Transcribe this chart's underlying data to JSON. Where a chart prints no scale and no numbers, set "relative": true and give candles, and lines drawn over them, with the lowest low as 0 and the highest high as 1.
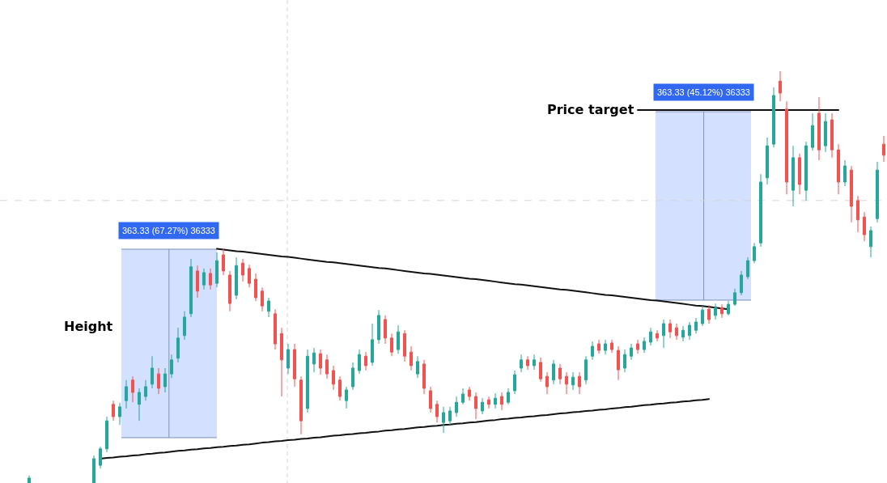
{
  "chart_data": {
    "type": "candlestick",
    "relative": true,
    "categories": [
      null,
      null,
      null,
      null,
      null,
      null,
      null,
      null,
      null,
      null,
      null,
      null,
      null,
      null,
      null,
      null,
      null,
      null,
      null,
      null,
      null,
      null,
      null,
      null,
      null,
      null,
      null,
      null,
      null,
      null,
      null,
      null,
      null,
      null,
      null,
      null,
      null,
      null,
      null,
      null,
      null,
      null,
      null,
      null,
      null,
      null,
      null,
      null,
      null,
      null,
      null,
      null,
      null,
      null,
      null,
      null,
      null,
      null,
      null,
      null,
      null,
      null,
      null,
      null,
      null,
      null,
      null,
      null,
      null,
      null,
      null,
      null,
      null,
      null,
      null,
      null,
      null,
      null,
      null,
      null,
      null,
      null,
      null,
      null,
      null,
      null,
      null,
      null,
      null,
      null,
      null,
      null,
      null,
      null,
      null,
      null,
      null,
      null,
      null,
      null,
      null,
      null,
      null,
      null,
      null,
      null,
      null,
      null,
      null,
      null,
      null,
      null,
      null,
      null,
      null,
      null,
      null,
      null,
      null,
      null,
      null,
      null,
      null,
      null,
      null,
      null,
      null,
      null,
      null,
      null,
      null,
      null,
      null,
      null,
      null,
      null,
      null
    ],
    "ohlc": [
      null,
      null,
      null,
      null,
      [
        0,
        0.018,
        0,
        0.012
      ],
      null,
      null,
      null,
      null,
      null,
      null,
      null,
      null,
      null,
      [
        0,
        0.067,
        0,
        0.059
      ],
      [
        0.043,
        0.088,
        0.035,
        0.083
      ],
      [
        0.083,
        0.161,
        0.075,
        0.151
      ],
      [
        0.191,
        0.2,
        0.151,
        0.161
      ],
      [
        0.161,
        0.195,
        0.141,
        0.185
      ],
      [
        0.2,
        0.25,
        0.181,
        0.234
      ],
      [
        0.25,
        0.259,
        0.196,
        0.22
      ],
      [
        0.191,
        0.23,
        0.151,
        0.22
      ],
      [
        0.21,
        0.25,
        0.2,
        0.234
      ],
      [
        0.24,
        0.308,
        0.23,
        0.279
      ],
      [
        0.265,
        0.279,
        0.216,
        0.23
      ],
      [
        0.234,
        0.279,
        0.22,
        0.265
      ],
      [
        0.265,
        0.312,
        0.255,
        0.299
      ],
      [
        0.303,
        0.377,
        0.293,
        0.352
      ],
      [
        0.358,
        0.417,
        0.348,
        0.403
      ],
      [
        0.411,
        0.544,
        0.403,
        0.525
      ],
      [
        0.515,
        0.528,
        0.45,
        0.466
      ],
      [
        0.481,
        0.521,
        0.47,
        0.511
      ],
      [
        0.509,
        0.521,
        0.47,
        0.481
      ],
      [
        0.485,
        0.56,
        0.475,
        0.54
      ],
      [
        0.554,
        0.57,
        0.505,
        0.515
      ],
      [
        0.505,
        0.515,
        0.417,
        0.436
      ],
      [
        0.456,
        0.548,
        0.446,
        0.528
      ],
      [
        0.534,
        0.544,
        0.489,
        0.505
      ],
      [
        0.521,
        0.53,
        0.475,
        0.485
      ],
      [
        0.495,
        0.509,
        0.442,
        0.45
      ],
      [
        0.466,
        0.475,
        0.417,
        0.43
      ],
      [
        0.417,
        0.45,
        0.403,
        0.442
      ],
      [
        0.411,
        0.422,
        0.324,
        0.338
      ],
      [
        0.363,
        0.377,
        0.21,
        0.299
      ],
      [
        0.279,
        0.338,
        0.265,
        0.324
      ],
      [
        0.324,
        0.338,
        0.234,
        0.253
      ],
      [
        0.25,
        0.259,
        0.118,
        0.151
      ],
      [
        0.181,
        0.324,
        0.171,
        0.308
      ],
      [
        0.289,
        0.328,
        0.269,
        0.316
      ],
      [
        0.314,
        0.324,
        0.263,
        0.279
      ],
      [
        0.299,
        0.312,
        0.253,
        0.265
      ],
      [
        0.273,
        0.285,
        0.226,
        0.24
      ],
      [
        0.25,
        0.259,
        0.2,
        0.21
      ],
      [
        0.2,
        0.234,
        0.181,
        0.226
      ],
      [
        0.234,
        0.293,
        0.226,
        0.279
      ],
      [
        0.273,
        0.324,
        0.265,
        0.312
      ],
      [
        0.308,
        0.318,
        0.273,
        0.285
      ],
      [
        0.293,
        0.387,
        0.285,
        0.348
      ],
      [
        0.348,
        0.42,
        0.338,
        0.407
      ],
      [
        0.397,
        0.407,
        0.338,
        0.352
      ],
      [
        0.352,
        0.363,
        0.308,
        0.318
      ],
      [
        0.324,
        0.383,
        0.314,
        0.367
      ],
      [
        0.363,
        0.371,
        0.295,
        0.308
      ],
      [
        0.318,
        0.332,
        0.273,
        0.285
      ],
      [
        0.265,
        0.308,
        0.255,
        0.295
      ],
      [
        0.289,
        0.299,
        0.216,
        0.23
      ],
      [
        0.224,
        0.234,
        0.171,
        0.181
      ],
      [
        0.191,
        0.2,
        0.147,
        0.161
      ],
      [
        0.147,
        0.185,
        0.122,
        0.171
      ],
      [
        0.151,
        0.185,
        0.141,
        0.175
      ],
      [
        0.171,
        0.21,
        0.161,
        0.196
      ],
      [
        0.196,
        0.23,
        0.191,
        0.216
      ],
      [
        0.226,
        0.234,
        0.2,
        0.21
      ],
      [
        0.21,
        0.22,
        0.155,
        0.181
      ],
      [
        0.175,
        0.206,
        0.167,
        0.196
      ],
      [
        0.202,
        0.21,
        0.181,
        0.191
      ],
      [
        0.191,
        0.218,
        0.181,
        0.206
      ],
      [
        0.21,
        0.22,
        0.177,
        0.191
      ],
      [
        0.196,
        0.23,
        0.191,
        0.22
      ],
      [
        0.224,
        0.273,
        0.216,
        0.263
      ],
      [
        0.279,
        0.312,
        0.269,
        0.299
      ],
      [
        0.299,
        0.308,
        0.275,
        0.285
      ],
      [
        0.285,
        0.312,
        0.275,
        0.299
      ],
      [
        0.293,
        0.305,
        0.246,
        0.253
      ],
      [
        0.259,
        0.269,
        0.216,
        0.234
      ],
      [
        0.25,
        0.299,
        0.24,
        0.289
      ],
      [
        0.279,
        0.289,
        0.24,
        0.253
      ],
      [
        0.259,
        0.269,
        0.216,
        0.24
      ],
      [
        0.238,
        0.269,
        0.226,
        0.257
      ],
      [
        0.259,
        0.269,
        0.216,
        0.234
      ],
      [
        0.25,
        0.308,
        0.24,
        0.299
      ],
      [
        0.308,
        0.344,
        0.299,
        0.332
      ],
      [
        0.338,
        0.348,
        0.314,
        0.322
      ],
      [
        0.322,
        0.348,
        0.312,
        0.338
      ],
      [
        0.34,
        0.348,
        0.316,
        0.324
      ],
      [
        0.322,
        0.332,
        0.25,
        0.275
      ],
      [
        0.279,
        0.324,
        0.269,
        0.312
      ],
      [
        0.308,
        0.338,
        0.299,
        0.328
      ],
      [
        0.338,
        0.348,
        0.314,
        0.324
      ],
      [
        0.324,
        0.354,
        0.316,
        0.344
      ],
      [
        0.342,
        0.377,
        0.334,
        0.367
      ],
      [
        0.363,
        0.371,
        0.344,
        0.352
      ],
      [
        0.358,
        0.397,
        0.328,
        0.387
      ],
      [
        0.387,
        0.397,
        0.352,
        0.367
      ],
      [
        0.377,
        0.387,
        0.348,
        0.358
      ],
      [
        0.354,
        0.381,
        0.344,
        0.371
      ],
      [
        0.358,
        0.391,
        0.348,
        0.383
      ],
      [
        0.371,
        0.401,
        0.363,
        0.391
      ],
      [
        0.387,
        0.43,
        0.381,
        0.42
      ],
      [
        0.422,
        0.432,
        0.387,
        0.397
      ],
      [
        0.407,
        0.436,
        0.397,
        0.426
      ],
      [
        0.426,
        0.434,
        0.401,
        0.411
      ],
      [
        0.411,
        0.442,
        0.407,
        0.434
      ],
      [
        0.434,
        0.472,
        0.43,
        0.462
      ],
      [
        0.462,
        0.515,
        0.456,
        0.505
      ],
      [
        0.501,
        0.548,
        0.495,
        0.54
      ],
      [
        0.54,
        0.583,
        0.534,
        0.574
      ],
      [
        0.583,
        0.75,
        0.574,
        0.731
      ],
      [
        0.741,
        0.839,
        0.725,
        0.819
      ],
      [
        0.823,
        0.961,
        0.815,
        0.941
      ],
      [
        0.976,
        1,
        0.927,
        0.947
      ],
      [
        0.908,
        0.927,
        0.701,
        0.731
      ],
      [
        0.711,
        0.819,
        0.672,
        0.79
      ],
      [
        0.79,
        0.8,
        0.701,
        0.725
      ],
      [
        0.711,
        0.829,
        0.686,
        0.819
      ],
      [
        0.815,
        0.898,
        0.807,
        0.868
      ],
      [
        0.898,
        0.937,
        0.784,
        0.809
      ],
      [
        0.819,
        0.898,
        0.804,
        0.878
      ],
      [
        0.882,
        0.898,
        0.79,
        0.809
      ],
      [
        0.809,
        0.823,
        0.701,
        0.731
      ],
      [
        0.731,
        0.784,
        0.721,
        0.77
      ],
      [
        0.76,
        0.77,
        0.633,
        0.672
      ],
      [
        0.686,
        0.697,
        0.609,
        0.639
      ],
      [
        0.646,
        0.658,
        0.587,
        0.603
      ],
      [
        0.574,
        0.623,
        0.548,
        0.613
      ],
      [
        0.642,
        0.78,
        0.633,
        0.76
      ],
      [
        0.823,
        0.843,
        0.78,
        0.796
      ]
    ],
    "colors": [
      null,
      null,
      null,
      null,
      "#26a69a",
      null,
      null,
      null,
      null,
      null,
      null,
      null,
      null,
      null,
      "#26a69a",
      "#26a69a",
      "#26a69a",
      "#ef5350",
      "#26a69a",
      "#26a69a",
      "#ef5350",
      "#26a69a",
      "#26a69a",
      "#26a69a",
      "#ef5350",
      "#26a69a",
      "#26a69a",
      "#26a69a",
      "#26a69a",
      "#26a69a",
      "#ef5350",
      "#26a69a",
      "#ef5350",
      "#26a69a",
      "#ef5350",
      "#ef5350",
      "#26a69a",
      "#ef5350",
      "#ef5350",
      "#ef5350",
      "#ef5350",
      "#26a69a",
      "#ef5350",
      "#ef5350",
      "#26a69a",
      "#ef5350",
      "#ef5350",
      "#26a69a",
      "#26a69a",
      "#ef5350",
      "#ef5350",
      "#ef5350",
      "#ef5350",
      "#26a69a",
      "#26a69a",
      "#26a69a",
      "#ef5350",
      "#26a69a",
      "#26a69a",
      "#ef5350",
      "#ef5350",
      "#26a69a",
      "#ef5350",
      "#ef5350",
      "#26a69a",
      "#ef5350",
      "#ef5350",
      "#ef5350",
      "#26a69a",
      "#26a69a",
      "#26a69a",
      "#26a69a",
      "#ef5350",
      "#ef5350",
      "#26a69a",
      "#ef5350",
      "#26a69a",
      "#ef5350",
      "#26a69a",
      "#26a69a",
      "#26a69a",
      "#ef5350",
      "#26a69a",
      "#ef5350",
      "#ef5350",
      "#26a69a",
      "#ef5350",
      "#ef5350",
      "#26a69a",
      "#ef5350",
      "#26a69a",
      "#26a69a",
      "#ef5350",
      "#26a69a",
      "#ef5350",
      "#ef5350",
      "#26a69a",
      "#26a69a",
      "#ef5350",
      "#26a69a",
      "#26a69a",
      "#ef5350",
      "#26a69a",
      "#ef5350",
      "#ef5350",
      "#26a69a",
      "#26a69a",
      "#26a69a",
      "#26a69a",
      "#ef5350",
      "#26a69a",
      "#ef5350",
      "#26a69a",
      "#26a69a",
      "#26a69a",
      "#26a69a",
      "#26a69a",
      "#26a69a",
      "#26a69a",
      "#26a69a",
      "#ef5350",
      "#ef5350",
      "#26a69a",
      "#ef5350",
      "#26a69a",
      "#26a69a",
      "#ef5350",
      "#26a69a",
      "#ef5350",
      "#ef5350",
      "#26a69a",
      "#ef5350",
      "#ef5350",
      "#ef5350",
      "#26a69a",
      "#26a69a",
      "#ef5350"
    ],
    "series": [
      {
        "type": "line",
        "color": "#111111",
        "values": [
          null,
          null,
          null,
          null,
          null,
          null,
          null,
          null,
          null,
          null,
          null,
          null,
          null,
          null,
          null,
          null,
          null,
          null,
          null,
          null,
          null,
          null,
          null,
          null,
          null,
          null,
          null,
          null,
          null,
          null,
          null,
          null,
          null,
          0.569,
          0.567,
          0.565,
          0.563,
          0.562,
          0.56,
          0.558,
          0.556,
          0.554,
          0.552,
          0.55,
          0.549,
          0.547,
          0.545,
          0.543,
          0.541,
          0.539,
          0.537,
          0.536,
          0.534,
          0.532,
          0.53,
          0.528,
          0.526,
          0.524,
          0.522,
          0.521,
          0.519,
          0.517,
          0.515,
          0.513,
          0.511,
          0.509,
          0.508,
          0.506,
          0.504,
          0.502,
          0.5,
          0.498,
          0.496,
          0.495,
          0.493,
          0.491,
          0.489,
          0.487,
          0.485,
          0.483,
          0.482,
          0.48,
          0.478,
          0.476,
          0.474,
          0.472,
          0.47,
          0.469,
          0.467,
          0.465,
          0.463,
          0.461,
          0.459,
          0.457,
          0.456,
          0.454,
          0.452,
          0.45,
          0.448,
          0.446,
          0.444,
          0.443,
          0.441,
          0.439,
          0.437,
          0.435,
          0.433,
          0.431,
          0.43,
          0.428,
          0.426,
          0.424,
          0.422,
          null,
          null,
          null,
          null,
          null,
          null,
          null,
          null,
          null,
          null,
          null,
          null,
          null,
          null,
          null,
          null,
          null,
          null,
          null,
          null,
          null,
          null,
          null,
          null
        ]
      },
      {
        "type": "line",
        "color": "#111111",
        "values": [
          null,
          null,
          null,
          null,
          null,
          null,
          null,
          null,
          null,
          null,
          null,
          null,
          null,
          null,
          null,
          0.059,
          0.061,
          0.062,
          0.064,
          0.065,
          0.067,
          0.068,
          0.07,
          0.071,
          0.073,
          0.074,
          0.076,
          0.078,
          0.079,
          0.081,
          0.082,
          0.084,
          0.085,
          0.087,
          0.088,
          0.09,
          0.091,
          0.093,
          0.094,
          0.096,
          0.098,
          0.099,
          0.101,
          0.102,
          0.104,
          0.105,
          0.107,
          0.108,
          0.11,
          0.111,
          0.113,
          0.115,
          0.116,
          0.118,
          0.119,
          0.121,
          0.122,
          0.124,
          0.125,
          0.127,
          0.128,
          0.13,
          0.131,
          0.133,
          0.135,
          0.136,
          0.138,
          0.139,
          0.141,
          0.142,
          0.144,
          0.145,
          0.147,
          0.148,
          0.15,
          0.152,
          0.153,
          0.155,
          0.156,
          0.158,
          0.159,
          0.161,
          0.162,
          0.164,
          0.165,
          0.167,
          0.169,
          0.17,
          0.172,
          0.173,
          0.175,
          0.176,
          0.178,
          0.179,
          0.181,
          0.182,
          0.184,
          0.185,
          0.187,
          0.189,
          0.19,
          0.192,
          0.193,
          0.195,
          0.196,
          0.198,
          0.199,
          0.201,
          0.202,
          0.204,
          null,
          null,
          null,
          null,
          null,
          null,
          null,
          null,
          null,
          null,
          null,
          null,
          null,
          null,
          null,
          null,
          null,
          null,
          null,
          null,
          null,
          null,
          null,
          null,
          null,
          null,
          null
        ]
      },
      {
        "type": "line",
        "name": "Price target",
        "color": "#111111",
        "values": [
          null,
          null,
          null,
          null,
          null,
          null,
          null,
          null,
          null,
          null,
          null,
          null,
          null,
          null,
          null,
          null,
          null,
          null,
          null,
          null,
          null,
          null,
          null,
          null,
          null,
          null,
          null,
          null,
          null,
          null,
          null,
          null,
          null,
          null,
          null,
          null,
          null,
          null,
          null,
          null,
          null,
          null,
          null,
          null,
          null,
          null,
          null,
          null,
          null,
          null,
          null,
          null,
          null,
          null,
          null,
          null,
          null,
          null,
          null,
          null,
          null,
          null,
          null,
          null,
          null,
          null,
          null,
          null,
          null,
          null,
          null,
          null,
          null,
          null,
          null,
          null,
          null,
          null,
          null,
          null,
          null,
          null,
          null,
          null,
          null,
          null,
          null,
          null,
          null,
          null,
          null,
          null,
          null,
          null,
          null,
          null,
          null,
          null,
          0.906,
          0.906,
          0.906,
          0.906,
          0.906,
          0.906,
          0.906,
          0.906,
          0.906,
          0.906,
          0.906,
          0.906,
          0.906,
          0.906,
          0.906,
          0.906,
          0.906,
          0.906,
          0.906,
          0.906,
          0.906,
          0.906,
          0.906,
          0.906,
          0.906,
          0.906,
          0.906,
          0.906,
          0.906,
          0.906,
          0.906,
          0.906,
          null,
          null,
          null,
          null,
          null,
          null,
          null
        ]
      }
    ],
    "ref_lines": [
      {
        "axis": "y",
        "value": 0.686,
        "color": "#d4d4d4",
        "line_style": "dashed"
      }
    ],
    "annotations": [
      "Height",
      "363.33 (67.27%) 36333",
      "363.33 (45.12%) 36333"
    ]
  }
}
